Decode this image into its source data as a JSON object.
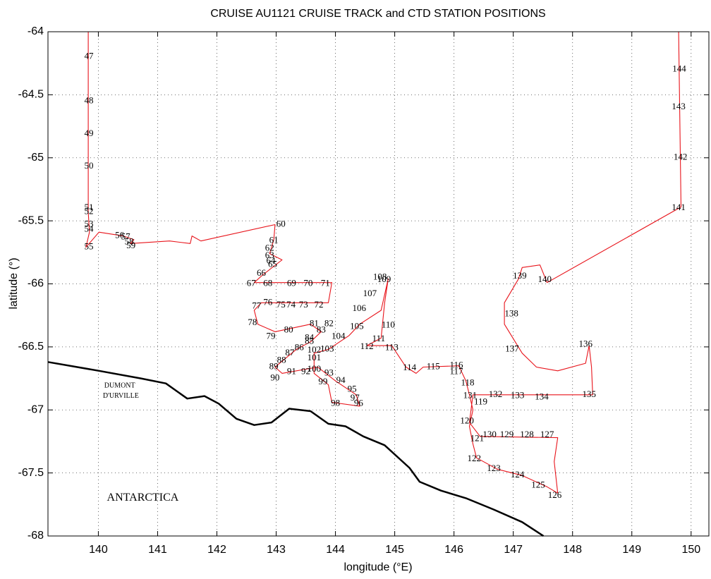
{
  "chart_data": {
    "type": "line",
    "title": "CRUISE AU1121   CRUISE TRACK and CTD STATION POSITIONS",
    "xlabel": "longitude (°E)",
    "ylabel": "latitude (°)",
    "xlim": [
      139.15,
      150.3
    ],
    "ylim": [
      -68,
      -64
    ],
    "xticks": [
      140,
      141,
      142,
      143,
      144,
      145,
      146,
      147,
      148,
      149,
      150
    ],
    "yticks": [
      -68,
      -67.5,
      -67,
      -66.5,
      -66,
      -65.5,
      -65,
      -64.5,
      -64
    ],
    "grid": true,
    "series": [
      {
        "color": "#e8141b",
        "x": [
          139.83,
          139.83,
          139.85,
          139.79,
          140.01,
          140.42,
          140.6,
          140.54,
          141.2,
          141.55,
          141.58,
          141.73,
          142.98,
          142.96,
          142.89,
          143.1,
          142.77,
          142.63,
          143.94,
          143.88,
          142.75,
          142.63,
          142.69,
          142.98,
          143.58,
          143.76,
          143.58,
          143.34,
          142.98,
          143.1,
          143.7,
          144.0,
          144.35,
          144.41,
          143.94,
          143.88,
          143.64,
          143.64,
          143.88,
          144.23,
          144.41,
          144.77,
          144.89,
          144.83,
          144.77,
          144.53,
          144.95,
          145.19,
          145.36,
          145.48,
          146.08,
          146.2,
          146.26,
          146.32,
          146.26,
          146.32,
          146.38,
          146.73,
          147.15,
          147.57,
          147.75,
          147.69,
          147.75,
          146.44,
          146.26,
          146.32,
          148.34,
          148.32,
          148.28,
          148.22,
          147.75,
          147.39,
          147.15,
          146.85,
          146.85,
          147.09,
          147.15,
          147.45,
          147.57,
          149.83,
          149.79
        ],
        "y": [
          -64.0,
          -65.43,
          -65.59,
          -65.71,
          -65.59,
          -65.62,
          -65.65,
          -65.68,
          -65.66,
          -65.68,
          -65.62,
          -65.66,
          -65.53,
          -65.65,
          -65.76,
          -65.81,
          -65.93,
          -65.99,
          -65.99,
          -66.15,
          -66.15,
          -66.21,
          -66.32,
          -66.38,
          -66.32,
          -66.38,
          -66.46,
          -66.52,
          -66.66,
          -66.71,
          -66.66,
          -66.77,
          -66.88,
          -66.97,
          -66.94,
          -66.8,
          -66.71,
          -66.55,
          -66.52,
          -66.41,
          -66.32,
          -66.21,
          -65.96,
          -66.15,
          -66.43,
          -66.49,
          -66.49,
          -66.66,
          -66.71,
          -66.66,
          -66.65,
          -66.77,
          -66.88,
          -67.0,
          -67.13,
          -67.27,
          -67.38,
          -67.47,
          -67.52,
          -67.61,
          -67.66,
          -67.41,
          -67.22,
          -67.21,
          -67.1,
          -66.88,
          -66.88,
          -66.66,
          -66.49,
          -66.63,
          -66.69,
          -66.66,
          -66.55,
          -66.32,
          -66.15,
          -65.96,
          -65.87,
          -65.85,
          -65.99,
          -65.39,
          -64.0
        ]
      },
      {
        "color": "#000000",
        "x": [
          139.15,
          140.01,
          140.72,
          141.14,
          141.5,
          141.79,
          142.03,
          142.33,
          142.63,
          142.92,
          143.22,
          143.58,
          143.88,
          144.17,
          144.47,
          144.83,
          145.25,
          145.42,
          145.78,
          146.2,
          146.67,
          147.15,
          147.51
        ],
        "y": [
          -66.62,
          -66.69,
          -66.75,
          -66.79,
          -66.91,
          -66.89,
          -66.95,
          -67.07,
          -67.12,
          -67.1,
          -66.99,
          -67.01,
          -67.11,
          -67.13,
          -67.21,
          -67.28,
          -67.46,
          -67.57,
          -67.64,
          -67.7,
          -67.79,
          -67.89,
          -68.0
        ]
      }
    ],
    "stations": [
      {
        "text": "47",
        "x": 139.84,
        "y": -64.2
      },
      {
        "text": "48",
        "x": 139.84,
        "y": -64.55
      },
      {
        "text": "49",
        "x": 139.84,
        "y": -64.81
      },
      {
        "text": "50",
        "x": 139.84,
        "y": -65.07
      },
      {
        "text": "51",
        "x": 139.84,
        "y": -65.4
      },
      {
        "text": "52",
        "x": 139.84,
        "y": -65.43
      },
      {
        "text": "53",
        "x": 139.84,
        "y": -65.53
      },
      {
        "text": "54",
        "x": 139.84,
        "y": -65.57
      },
      {
        "text": "55",
        "x": 139.84,
        "y": -65.71
      },
      {
        "text": "56",
        "x": 140.36,
        "y": -65.62
      },
      {
        "text": "57",
        "x": 140.46,
        "y": -65.63
      },
      {
        "text": "58",
        "x": 140.52,
        "y": -65.67
      },
      {
        "text": "59",
        "x": 140.55,
        "y": -65.7
      },
      {
        "text": "60",
        "x": 143.08,
        "y": -65.53
      },
      {
        "text": "61",
        "x": 142.96,
        "y": -65.66
      },
      {
        "text": "62",
        "x": 142.89,
        "y": -65.72
      },
      {
        "text": "63",
        "x": 142.89,
        "y": -65.78
      },
      {
        "text": "64",
        "x": 142.91,
        "y": -65.82
      },
      {
        "text": "65",
        "x": 142.94,
        "y": -65.85
      },
      {
        "text": "66",
        "x": 142.75,
        "y": -65.92
      },
      {
        "text": "67",
        "x": 142.58,
        "y": -66.0
      },
      {
        "text": "68",
        "x": 142.86,
        "y": -66.0
      },
      {
        "text": "69",
        "x": 143.26,
        "y": -66.0
      },
      {
        "text": "70",
        "x": 143.54,
        "y": -66.0
      },
      {
        "text": "71",
        "x": 143.83,
        "y": -66.0
      },
      {
        "text": "72",
        "x": 143.72,
        "y": -66.17
      },
      {
        "text": "73",
        "x": 143.46,
        "y": -66.17
      },
      {
        "text": "74",
        "x": 143.25,
        "y": -66.17
      },
      {
        "text": "75",
        "x": 143.08,
        "y": -66.17
      },
      {
        "text": "76",
        "x": 142.86,
        "y": -66.15
      },
      {
        "text": "77",
        "x": 142.67,
        "y": -66.18
      },
      {
        "text": "78",
        "x": 142.6,
        "y": -66.31
      },
      {
        "text": "79",
        "x": 142.91,
        "y": -66.42
      },
      {
        "text": "80",
        "x": 143.21,
        "y": -66.37
      },
      {
        "text": "81",
        "x": 143.64,
        "y": -66.32
      },
      {
        "text": "82",
        "x": 143.89,
        "y": -66.32
      },
      {
        "text": "83",
        "x": 143.76,
        "y": -66.37
      },
      {
        "text": "84",
        "x": 143.56,
        "y": -66.43
      },
      {
        "text": "85",
        "x": 143.56,
        "y": -66.46
      },
      {
        "text": "86",
        "x": 143.39,
        "y": -66.51
      },
      {
        "text": "87",
        "x": 143.23,
        "y": -66.55
      },
      {
        "text": "88",
        "x": 143.09,
        "y": -66.61
      },
      {
        "text": "89",
        "x": 142.96,
        "y": -66.66
      },
      {
        "text": "90",
        "x": 142.98,
        "y": -66.75
      },
      {
        "text": "91",
        "x": 143.26,
        "y": -66.7
      },
      {
        "text": "92",
        "x": 143.5,
        "y": -66.7
      },
      {
        "text": "93",
        "x": 143.89,
        "y": -66.71
      },
      {
        "text": "94",
        "x": 144.09,
        "y": -66.77
      },
      {
        "text": "95",
        "x": 144.28,
        "y": -66.84
      },
      {
        "text": "96",
        "x": 144.39,
        "y": -66.95
      },
      {
        "text": "97",
        "x": 144.33,
        "y": -66.91
      },
      {
        "text": "98",
        "x": 144.0,
        "y": -66.95
      },
      {
        "text": "99",
        "x": 143.79,
        "y": -66.78
      },
      {
        "text": "100",
        "x": 143.64,
        "y": -66.68
      },
      {
        "text": "101",
        "x": 143.64,
        "y": -66.59
      },
      {
        "text": "102",
        "x": 143.64,
        "y": -66.53
      },
      {
        "text": "103",
        "x": 143.86,
        "y": -66.52
      },
      {
        "text": "104",
        "x": 144.05,
        "y": -66.42
      },
      {
        "text": "105",
        "x": 144.36,
        "y": -66.34
      },
      {
        "text": "106",
        "x": 144.4,
        "y": -66.2
      },
      {
        "text": "107",
        "x": 144.58,
        "y": -66.08
      },
      {
        "text": "108",
        "x": 144.75,
        "y": -65.95
      },
      {
        "text": "109",
        "x": 144.82,
        "y": -65.97
      },
      {
        "text": "110",
        "x": 144.89,
        "y": -66.33
      },
      {
        "text": "111",
        "x": 144.73,
        "y": -66.44
      },
      {
        "text": "112",
        "x": 144.53,
        "y": -66.5
      },
      {
        "text": "113",
        "x": 144.95,
        "y": -66.51
      },
      {
        "text": "114",
        "x": 145.25,
        "y": -66.67
      },
      {
        "text": "115",
        "x": 145.65,
        "y": -66.66
      },
      {
        "text": "116",
        "x": 146.04,
        "y": -66.65
      },
      {
        "text": "117",
        "x": 146.04,
        "y": -66.7
      },
      {
        "text": "118",
        "x": 146.23,
        "y": -66.79
      },
      {
        "text": "119",
        "x": 146.45,
        "y": -66.94
      },
      {
        "text": "120",
        "x": 146.22,
        "y": -67.09
      },
      {
        "text": "121",
        "x": 146.39,
        "y": -67.23
      },
      {
        "text": "122",
        "x": 146.34,
        "y": -67.39
      },
      {
        "text": "123",
        "x": 146.67,
        "y": -67.47
      },
      {
        "text": "124",
        "x": 147.07,
        "y": -67.52
      },
      {
        "text": "125",
        "x": 147.42,
        "y": -67.6
      },
      {
        "text": "126",
        "x": 147.7,
        "y": -67.68
      },
      {
        "text": "127",
        "x": 147.57,
        "y": -67.2
      },
      {
        "text": "128",
        "x": 147.23,
        "y": -67.2
      },
      {
        "text": "129",
        "x": 146.89,
        "y": -67.2
      },
      {
        "text": "130",
        "x": 146.6,
        "y": -67.2
      },
      {
        "text": "131",
        "x": 146.27,
        "y": -66.89
      },
      {
        "text": "132",
        "x": 146.7,
        "y": -66.88
      },
      {
        "text": "133",
        "x": 147.07,
        "y": -66.89
      },
      {
        "text": "134",
        "x": 147.48,
        "y": -66.9
      },
      {
        "text": "135",
        "x": 148.28,
        "y": -66.88
      },
      {
        "text": "136",
        "x": 148.22,
        "y": -66.48
      },
      {
        "text": "137",
        "x": 146.98,
        "y": -66.52
      },
      {
        "text": "138",
        "x": 146.97,
        "y": -66.24
      },
      {
        "text": "139",
        "x": 147.11,
        "y": -65.94
      },
      {
        "text": "140",
        "x": 147.53,
        "y": -65.97
      },
      {
        "text": "141",
        "x": 149.79,
        "y": -65.4
      },
      {
        "text": "142",
        "x": 149.82,
        "y": -65.0
      },
      {
        "text": "143",
        "x": 149.79,
        "y": -64.6
      },
      {
        "text": "144",
        "x": 149.8,
        "y": -64.3
      }
    ],
    "place_labels": [
      {
        "text": "DUMONT",
        "x": 140.36,
        "y": -66.81
      },
      {
        "text": "D'URVILLE",
        "x": 140.38,
        "y": -66.89
      },
      {
        "text": "ANTARCTICA",
        "x": 140.75,
        "y": -67.7
      }
    ]
  }
}
